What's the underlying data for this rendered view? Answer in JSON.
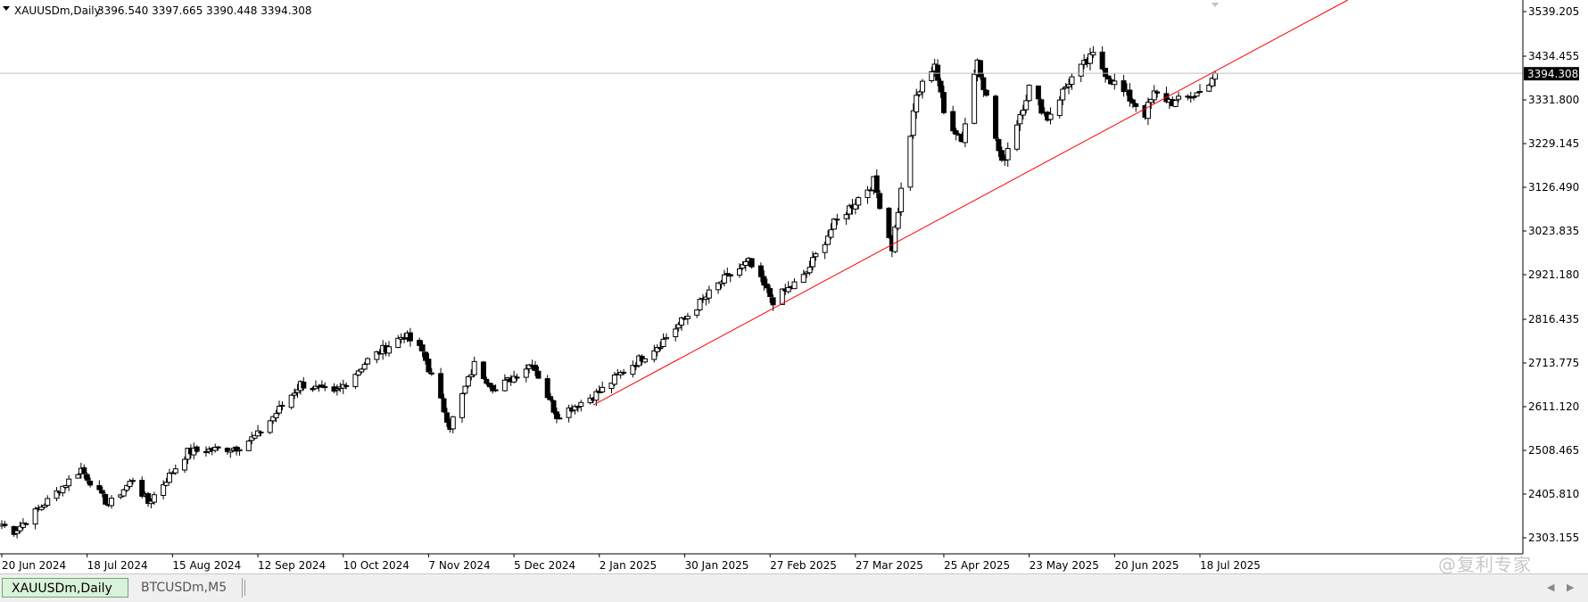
{
  "header": {
    "menu_icon": "triangle-down-icon",
    "symbol": "XAUUSDm,Daily",
    "ohlc": "3396.540 3397.665 3390.448 3394.308"
  },
  "colors": {
    "background": "#ffffff",
    "candle": "#000000",
    "trendline": "#ff0000",
    "price_line": "#c0c0c0",
    "price_tag_bg": "#000000",
    "price_tag_text": "#ffffff",
    "active_tab": "#d9f2d9"
  },
  "chart_data": {
    "type": "candlestick",
    "symbol": "XAUUSDm",
    "timeframe": "Daily",
    "ylim": [
      2250,
      3580
    ],
    "y_ticks": [
      "3539.205",
      "3434.455",
      "3331.800",
      "3229.145",
      "3126.490",
      "3023.835",
      "2921.180",
      "2816.435",
      "2713.775",
      "2611.120",
      "2508.465",
      "2405.810",
      "2303.155"
    ],
    "x_ticks": [
      "20 Jun 2024",
      "18 Jul 2024",
      "15 Aug 2024",
      "12 Sep 2024",
      "10 Oct 2024",
      "7 Nov 2024",
      "5 Dec 2024",
      "2 Jan 2025",
      "30 Jan 2025",
      "27 Feb 2025",
      "27 Mar 2025",
      "25 Apr 2025",
      "23 May 2025",
      "20 Jun 2025",
      "18 Jul 2025"
    ],
    "anchors": [
      {
        "date": "20 Jun 2024",
        "close": 2335
      },
      {
        "date": "24 Jun 2024",
        "close": 2318
      },
      {
        "date": "5 Jul 2024",
        "close": 2390
      },
      {
        "date": "16 Jul 2024",
        "close": 2465
      },
      {
        "date": "18 Jul 2024",
        "close": 2445
      },
      {
        "date": "25 Jul 2024",
        "close": 2380
      },
      {
        "date": "2 Aug 2024",
        "close": 2440
      },
      {
        "date": "7 Aug 2024",
        "close": 2385
      },
      {
        "date": "20 Aug 2024",
        "close": 2505
      },
      {
        "date": "5 Sep 2024",
        "close": 2515
      },
      {
        "date": "12 Sep 2024",
        "close": 2545
      },
      {
        "date": "26 Sep 2024",
        "close": 2665
      },
      {
        "date": "7 Oct 2024",
        "close": 2640
      },
      {
        "date": "18 Oct 2024",
        "close": 2720
      },
      {
        "date": "30 Oct 2024",
        "close": 2780
      },
      {
        "date": "5 Nov 2024",
        "close": 2740
      },
      {
        "date": "14 Nov 2024",
        "close": 2565
      },
      {
        "date": "22 Nov 2024",
        "close": 2710
      },
      {
        "date": "29 Nov 2024",
        "close": 2650
      },
      {
        "date": "11 Dec 2024",
        "close": 2715
      },
      {
        "date": "19 Dec 2024",
        "close": 2590
      },
      {
        "date": "2 Jan 2025",
        "close": 2645
      },
      {
        "date": "10 Jan 2025",
        "close": 2695
      },
      {
        "date": "22 Jan 2025",
        "close": 2760
      },
      {
        "date": "11 Feb 2025",
        "close": 2905
      },
      {
        "date": "20 Feb 2025",
        "close": 2950
      },
      {
        "date": "28 Feb 2025",
        "close": 2860
      },
      {
        "date": "10 Mar 2025",
        "close": 2915
      },
      {
        "date": "20 Mar 2025",
        "close": 3040
      },
      {
        "date": "2 Apr 2025",
        "close": 3140
      },
      {
        "date": "8 Apr 2025",
        "close": 2985
      },
      {
        "date": "16 Apr 2025",
        "close": 3340
      },
      {
        "date": "22 Apr 2025",
        "close": 3420
      },
      {
        "date": "25 Apr 2025",
        "close": 3300
      },
      {
        "date": "1 May 2025",
        "close": 3240
      },
      {
        "date": "6 May 2025",
        "close": 3430
      },
      {
        "date": "14 May 2025",
        "close": 3180
      },
      {
        "date": "23 May 2025",
        "close": 3360
      },
      {
        "date": "29 May 2025",
        "close": 3290
      },
      {
        "date": "5 Jun 2025",
        "close": 3375
      },
      {
        "date": "13 Jun 2025",
        "close": 3435
      },
      {
        "date": "20 Jun 2025",
        "close": 3370
      },
      {
        "date": "30 Jun 2025",
        "close": 3300
      },
      {
        "date": "3 Jul 2025",
        "close": 3345
      },
      {
        "date": "10 Jul 2025",
        "close": 3325
      },
      {
        "date": "18 Jul 2025",
        "close": 3350
      },
      {
        "date": "23 Jul 2025",
        "close": 3394.308
      }
    ],
    "current_price": "3394.308",
    "trendline": {
      "from": {
        "date": "31 Dec 2024",
        "price": 2615
      },
      "to": {
        "date": "18 Jul 2025",
        "price": 3380
      }
    },
    "grid": false
  },
  "tabs": [
    {
      "label": "XAUUSDm,Daily",
      "active": true
    },
    {
      "label": "BTCUSDm,M5",
      "active": false
    }
  ],
  "watermark": "@复利专家"
}
